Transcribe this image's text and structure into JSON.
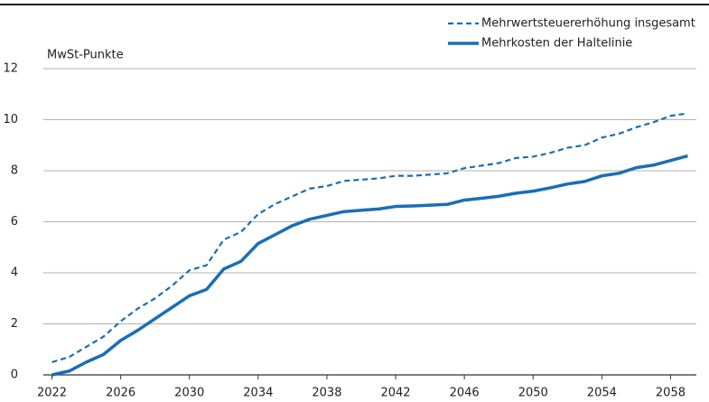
{
  "chart_data": {
    "type": "line",
    "y_label": "MwSt-Punkte",
    "x": [
      2022,
      2023,
      2024,
      2025,
      2026,
      2027,
      2028,
      2029,
      2030,
      2031,
      2032,
      2033,
      2034,
      2035,
      2036,
      2037,
      2038,
      2039,
      2040,
      2041,
      2042,
      2043,
      2044,
      2045,
      2046,
      2047,
      2048,
      2049,
      2050,
      2051,
      2052,
      2053,
      2054,
      2055,
      2056,
      2057,
      2058,
      2059
    ],
    "series": [
      {
        "name": "Mehrwertsteuererhöhung insgesamt",
        "color": "#1a6eb5",
        "dash": true,
        "values": [
          0.5,
          0.7,
          1.1,
          1.5,
          2.1,
          2.6,
          3.0,
          3.5,
          4.1,
          4.3,
          5.3,
          5.6,
          6.3,
          6.7,
          7.0,
          7.3,
          7.4,
          7.6,
          7.65,
          7.7,
          7.8,
          7.8,
          7.85,
          7.9,
          8.1,
          8.2,
          8.3,
          8.5,
          8.55,
          8.7,
          8.9,
          9.0,
          9.3,
          9.45,
          9.7,
          9.9,
          10.15,
          10.25
        ]
      },
      {
        "name": "Mehrkosten der Haltelinie",
        "color": "#1a6eb5",
        "dash": false,
        "values": [
          0,
          0.15,
          0.5,
          0.8,
          1.35,
          1.75,
          2.2,
          2.65,
          3.1,
          3.35,
          4.15,
          4.45,
          5.15,
          5.5,
          5.85,
          6.1,
          6.25,
          6.4,
          6.45,
          6.5,
          6.6,
          6.62,
          6.65,
          6.68,
          6.85,
          6.92,
          7.0,
          7.12,
          7.2,
          7.33,
          7.48,
          7.58,
          7.8,
          7.9,
          8.12,
          8.22,
          8.4,
          8.58
        ]
      }
    ],
    "xlim": [
      2021.5,
      2059.5
    ],
    "xticks": [
      2022,
      2026,
      2030,
      2034,
      2038,
      2042,
      2046,
      2050,
      2054,
      2058
    ],
    "ylim": [
      0,
      12
    ],
    "yticks": [
      0,
      2,
      4,
      6,
      8,
      10,
      12
    ],
    "grid": true,
    "legend": "top-right"
  }
}
